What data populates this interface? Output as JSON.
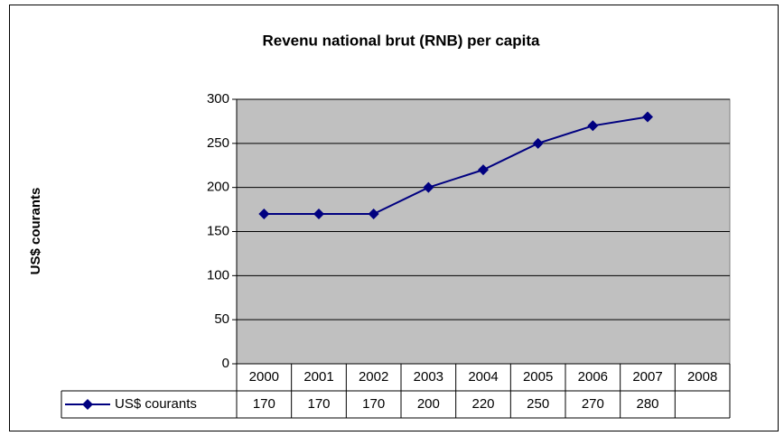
{
  "chart_data": {
    "type": "line",
    "title": "Revenu national brut (RNB) per capita",
    "y_label": "US$ courants",
    "categories": [
      "2000",
      "2001",
      "2002",
      "2003",
      "2004",
      "2005",
      "2006",
      "2007",
      "2008"
    ],
    "series": [
      {
        "name": "US$ courants",
        "color": "#000080",
        "values": [
          170,
          170,
          170,
          200,
          220,
          250,
          270,
          280,
          null
        ]
      }
    ],
    "ylim": [
      0,
      300
    ],
    "yticks": [
      0,
      50,
      100,
      150,
      200,
      250,
      300
    ],
    "grid": true,
    "data_table": true
  }
}
